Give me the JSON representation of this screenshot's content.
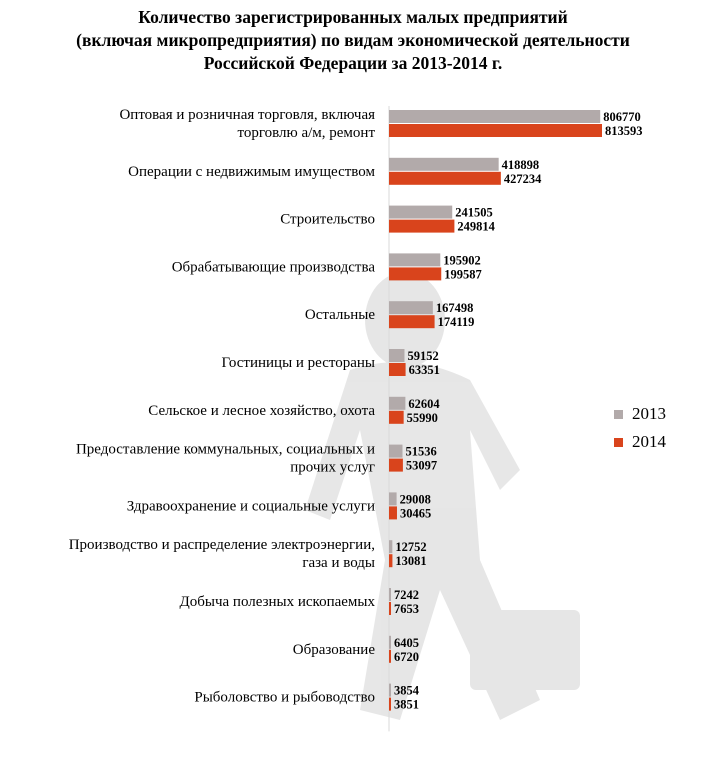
{
  "title": {
    "line1": "Количество зарегистрированных малых предприятий",
    "line2": "(включая микропредприятия) по видам экономической деятельности",
    "line3": "Российской Федерации за  2013-2014 г."
  },
  "colors": {
    "s2013": "#b2aaaa",
    "s2014": "#d9441c"
  },
  "legend": [
    {
      "label": "2013",
      "color": "#b2aaaa"
    },
    {
      "label": "2014",
      "color": "#d9441c"
    }
  ],
  "chart_data": {
    "type": "bar",
    "orientation": "horizontal",
    "title": "Количество зарегистрированных малых предприятий (включая микропредприятия) по видам экономической деятельности Российской Федерации за  2013-2014 г.",
    "categories": [
      [
        "Оптовая и розничная торговля, включая",
        "торговлю а/м, ремонт"
      ],
      [
        "Операции с недвижимым имуществом"
      ],
      [
        "Строительство"
      ],
      [
        "Обрабатывающие производства"
      ],
      [
        "Остальные"
      ],
      [
        "Гостиницы и рестораны"
      ],
      [
        "Сельское и лесное хозяйство, охота"
      ],
      [
        "Предоставление коммунальных, социальных и",
        "прочих услуг"
      ],
      [
        "Здравоохранение и социальные услуги"
      ],
      [
        "Производство и распределение электроэнергии,",
        "газа и воды"
      ],
      [
        "Добыча полезных ископаемых"
      ],
      [
        "Образование"
      ],
      [
        "Рыболовство и рыбоводство"
      ]
    ],
    "series": [
      {
        "name": "2013",
        "values": [
          806770,
          418898,
          241505,
          195902,
          167498,
          59152,
          62604,
          51536,
          29008,
          12752,
          7242,
          6405,
          3854
        ]
      },
      {
        "name": "2014",
        "values": [
          813593,
          427234,
          249814,
          199587,
          174119,
          63351,
          55990,
          53097,
          30465,
          13081,
          7653,
          6720,
          3851
        ]
      }
    ],
    "xlim": [
      0,
      813593
    ],
    "legend_position": "right",
    "grid": false
  }
}
